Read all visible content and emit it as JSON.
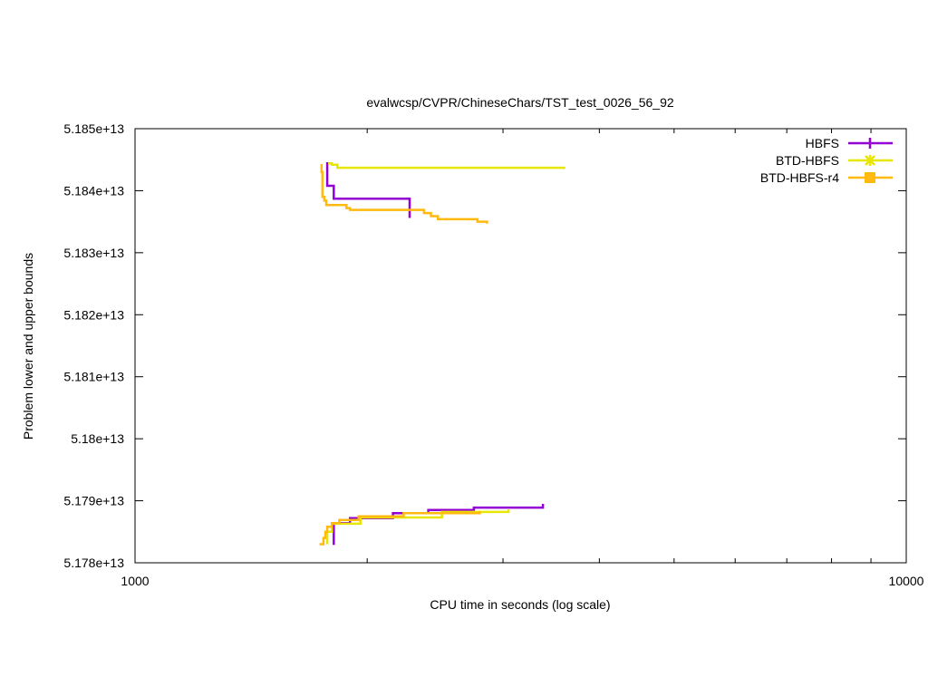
{
  "chart_data": {
    "type": "line",
    "title": "evalwcsp/CVPR/ChineseChars/TST_test_0026_56_92",
    "xlabel": "CPU time in seconds (log scale)",
    "ylabel": "Problem lower and upper bounds",
    "x_scale": "log",
    "xlim": [
      1000,
      10000
    ],
    "ylim": [
      51780000000000,
      51850000000000
    ],
    "x_ticks": [
      {
        "value": 1000,
        "label": "1000"
      },
      {
        "value": 10000,
        "label": "10000"
      }
    ],
    "y_ticks": [
      {
        "value": 51780000000000,
        "label": "5.178e+13"
      },
      {
        "value": 51790000000000,
        "label": "5.179e+13"
      },
      {
        "value": 51800000000000,
        "label": "5.18e+13"
      },
      {
        "value": 51810000000000,
        "label": "5.181e+13"
      },
      {
        "value": 51820000000000,
        "label": "5.182e+13"
      },
      {
        "value": 51830000000000,
        "label": "5.183e+13"
      },
      {
        "value": 51840000000000,
        "label": "5.184e+13"
      },
      {
        "value": 51850000000000,
        "label": "5.185e+13"
      }
    ],
    "grid": false,
    "legend_position": "top-right",
    "series": [
      {
        "name": "HBFS",
        "color": "#9400d3",
        "marker": "plus",
        "upper": [
          [
            1775,
            51844600000000
          ],
          [
            1775,
            51840800000000
          ],
          [
            1810,
            51840800000000
          ],
          [
            1810,
            51838700000000
          ],
          [
            2270,
            51838700000000
          ],
          [
            2270,
            51835600000000
          ]
        ],
        "lower": [
          [
            1810,
            51782900000000
          ],
          [
            1810,
            51786400000000
          ],
          [
            1900,
            51786400000000
          ],
          [
            1900,
            51787200000000
          ],
          [
            2160,
            51787200000000
          ],
          [
            2160,
            51788000000000
          ],
          [
            2400,
            51788000000000
          ],
          [
            2400,
            51788500000000
          ],
          [
            2750,
            51788500000000
          ],
          [
            2750,
            51788900000000
          ],
          [
            3380,
            51788900000000
          ],
          [
            3380,
            51789500000000
          ]
        ]
      },
      {
        "name": "BTD-HBFS",
        "color": "#e6e600",
        "marker": "star",
        "upper": [
          [
            1780,
            51844400000000
          ],
          [
            1800,
            51844400000000
          ],
          [
            1800,
            51844200000000
          ],
          [
            1830,
            51844200000000
          ],
          [
            1830,
            51843700000000
          ],
          [
            3600,
            51843700000000
          ],
          [
            3600,
            51843500000000
          ]
        ],
        "lower": [
          [
            1775,
            51783000000000
          ],
          [
            1775,
            51785000000000
          ],
          [
            1800,
            51785000000000
          ],
          [
            1800,
            51786300000000
          ],
          [
            1960,
            51786300000000
          ],
          [
            1960,
            51787300000000
          ],
          [
            2500,
            51787300000000
          ],
          [
            2500,
            51788200000000
          ],
          [
            3050,
            51788200000000
          ],
          [
            3050,
            51788600000000
          ]
        ]
      },
      {
        "name": "BTD-HBFS-r4",
        "color": "#ffb90f",
        "marker": "square",
        "upper": [
          [
            1745,
            51844300000000
          ],
          [
            1745,
            51843000000000
          ],
          [
            1750,
            51843000000000
          ],
          [
            1750,
            51839000000000
          ],
          [
            1760,
            51839000000000
          ],
          [
            1760,
            51838400000000
          ],
          [
            1770,
            51838400000000
          ],
          [
            1770,
            51837700000000
          ],
          [
            1880,
            51837700000000
          ],
          [
            1880,
            51837200000000
          ],
          [
            1900,
            51837200000000
          ],
          [
            1900,
            51836900000000
          ],
          [
            2370,
            51836900000000
          ],
          [
            2370,
            51836400000000
          ],
          [
            2420,
            51836400000000
          ],
          [
            2420,
            51835900000000
          ],
          [
            2470,
            51835900000000
          ],
          [
            2470,
            51835400000000
          ],
          [
            2780,
            51835400000000
          ],
          [
            2780,
            51835000000000
          ],
          [
            2860,
            51835000000000
          ],
          [
            2860,
            51834700000000
          ]
        ],
        "lower": [
          [
            1735,
            51783000000000
          ],
          [
            1755,
            51783000000000
          ],
          [
            1755,
            51784000000000
          ],
          [
            1765,
            51784000000000
          ],
          [
            1765,
            51785000000000
          ],
          [
            1775,
            51785000000000
          ],
          [
            1775,
            51785800000000
          ],
          [
            1800,
            51785800000000
          ],
          [
            1800,
            51786400000000
          ],
          [
            1840,
            51786400000000
          ],
          [
            1840,
            51786900000000
          ],
          [
            1950,
            51786900000000
          ],
          [
            1950,
            51787500000000
          ],
          [
            2230,
            51787500000000
          ],
          [
            2230,
            51788000000000
          ],
          [
            2800,
            51788000000000
          ],
          [
            2800,
            51788300000000
          ]
        ]
      }
    ]
  }
}
